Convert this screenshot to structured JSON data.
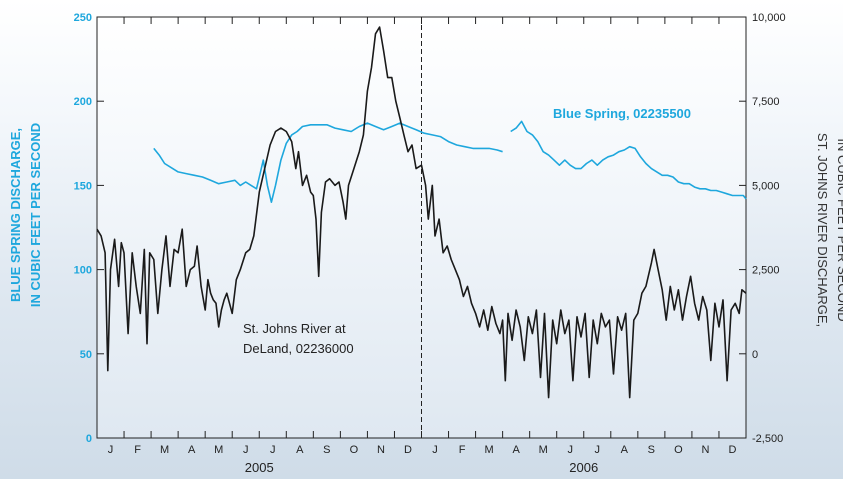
{
  "chart_data": {
    "type": "line",
    "title": "",
    "x_axis": {
      "month_labels": [
        "J",
        "F",
        "M",
        "A",
        "M",
        "J",
        "J",
        "A",
        "S",
        "O",
        "N",
        "D",
        "J",
        "F",
        "M",
        "A",
        "M",
        "J",
        "J",
        "A",
        "S",
        "O",
        "N",
        "D"
      ],
      "year_labels": [
        "2005",
        "2006"
      ],
      "range": [
        "2005-01-01",
        "2006-12-31"
      ]
    },
    "y_left": {
      "label_lines": [
        "BLUE SPRING DISCHARGE,",
        "IN CUBIC FEET PER SECOND"
      ],
      "ticks": [
        0,
        50,
        100,
        150,
        200,
        250
      ],
      "tick_labels": [
        "0",
        "50",
        "100",
        "150",
        "200",
        "250"
      ],
      "range": [
        0,
        250
      ]
    },
    "y_right": {
      "label_lines": [
        "ST. JOHNS RIVER DISCHARGE,",
        "IN CUBIC FEET PER SECOND"
      ],
      "ticks": [
        -2500,
        0,
        2500,
        5000,
        7500,
        10000
      ],
      "tick_labels": [
        "-2,500",
        "0",
        "2,500",
        "5,000",
        "7,500",
        "10,000"
      ],
      "range": [
        -2500,
        10000
      ]
    },
    "year_divider_month": 12,
    "annotations": {
      "blue_spring": "Blue Spring, 02235500",
      "st_johns_line1": "St. Johns River at",
      "st_johns_line2": "DeLand, 02236000"
    },
    "series": [
      {
        "name": "Blue Spring, 02235500",
        "axis": "left",
        "color": "#1ea7dd",
        "segments": [
          [
            [
              2.1,
              172
            ],
            [
              2.3,
              168
            ],
            [
              2.5,
              163
            ],
            [
              2.8,
              160
            ],
            [
              3.0,
              158
            ],
            [
              3.3,
              157
            ],
            [
              3.6,
              156
            ],
            [
              3.9,
              155
            ],
            [
              4.2,
              153
            ],
            [
              4.5,
              151
            ],
            [
              4.8,
              152
            ],
            [
              5.1,
              153
            ],
            [
              5.3,
              150
            ],
            [
              5.5,
              152
            ],
            [
              5.7,
              150
            ],
            [
              5.9,
              148
            ],
            [
              6.0,
              155
            ],
            [
              6.15,
              165
            ],
            [
              6.3,
              150
            ],
            [
              6.45,
              140
            ],
            [
              6.6,
              150
            ],
            [
              6.8,
              165
            ],
            [
              7.0,
              175
            ],
            [
              7.2,
              180
            ],
            [
              7.4,
              182
            ],
            [
              7.6,
              185
            ],
            [
              7.9,
              186
            ],
            [
              8.2,
              186
            ],
            [
              8.5,
              186
            ],
            [
              8.8,
              184
            ],
            [
              9.1,
              183
            ],
            [
              9.4,
              182
            ],
            [
              9.7,
              185
            ],
            [
              10.0,
              187
            ],
            [
              10.3,
              185
            ],
            [
              10.6,
              183
            ],
            [
              10.9,
              185
            ],
            [
              11.2,
              187
            ],
            [
              11.5,
              185
            ],
            [
              11.8,
              183
            ],
            [
              12.1,
              181
            ],
            [
              12.4,
              180
            ],
            [
              12.7,
              179
            ],
            [
              13.0,
              176
            ],
            [
              13.3,
              174
            ],
            [
              13.6,
              173
            ],
            [
              13.9,
              172
            ],
            [
              14.2,
              172
            ],
            [
              14.5,
              172
            ],
            [
              14.8,
              171
            ],
            [
              15.0,
              170
            ]
          ],
          [
            [
              15.3,
              182
            ],
            [
              15.5,
              184
            ],
            [
              15.7,
              188
            ],
            [
              15.9,
              182
            ],
            [
              16.1,
              180
            ],
            [
              16.3,
              176
            ],
            [
              16.5,
              170
            ],
            [
              16.7,
              168
            ],
            [
              16.9,
              165
            ],
            [
              17.1,
              162
            ],
            [
              17.3,
              165
            ],
            [
              17.5,
              162
            ],
            [
              17.7,
              160
            ],
            [
              17.9,
              160
            ],
            [
              18.1,
              163
            ],
            [
              18.3,
              165
            ],
            [
              18.5,
              162
            ],
            [
              18.7,
              165
            ],
            [
              18.9,
              167
            ],
            [
              19.1,
              168
            ],
            [
              19.3,
              170
            ],
            [
              19.5,
              171
            ],
            [
              19.7,
              173
            ],
            [
              19.9,
              172
            ],
            [
              20.1,
              167
            ],
            [
              20.3,
              163
            ],
            [
              20.5,
              160
            ],
            [
              20.7,
              158
            ],
            [
              20.9,
              156
            ],
            [
              21.1,
              156
            ],
            [
              21.3,
              155
            ],
            [
              21.5,
              152
            ],
            [
              21.7,
              151
            ],
            [
              21.9,
              151
            ],
            [
              22.1,
              149
            ],
            [
              22.3,
              148
            ],
            [
              22.5,
              148
            ],
            [
              22.7,
              147
            ],
            [
              22.9,
              147
            ],
            [
              23.1,
              146
            ],
            [
              23.3,
              145
            ],
            [
              23.5,
              144
            ],
            [
              23.7,
              144
            ],
            [
              23.9,
              144
            ],
            [
              24.0,
              142
            ]
          ]
        ]
      },
      {
        "name": "St. Johns River at DeLand, 02236000",
        "axis": "right",
        "color": "#1a1a1a",
        "segments": [
          [
            [
              0.0,
              3700
            ],
            [
              0.15,
              3500
            ],
            [
              0.3,
              3000
            ],
            [
              0.4,
              -500
            ],
            [
              0.5,
              2500
            ],
            [
              0.65,
              3400
            ],
            [
              0.8,
              2000
            ],
            [
              0.9,
              3300
            ],
            [
              1.0,
              3000
            ],
            [
              1.15,
              600
            ],
            [
              1.3,
              3000
            ],
            [
              1.45,
              2000
            ],
            [
              1.6,
              1200
            ],
            [
              1.75,
              3100
            ],
            [
              1.85,
              300
            ],
            [
              1.95,
              3000
            ],
            [
              2.1,
              2800
            ],
            [
              2.25,
              1200
            ],
            [
              2.4,
              2500
            ],
            [
              2.55,
              3500
            ],
            [
              2.7,
              2000
            ],
            [
              2.85,
              3100
            ],
            [
              3.0,
              3000
            ],
            [
              3.15,
              3700
            ],
            [
              3.3,
              2000
            ],
            [
              3.45,
              2500
            ],
            [
              3.6,
              2600
            ],
            [
              3.7,
              3200
            ],
            [
              3.85,
              2000
            ],
            [
              4.0,
              1300
            ],
            [
              4.1,
              2200
            ],
            [
              4.2,
              1800
            ],
            [
              4.3,
              1600
            ],
            [
              4.4,
              1500
            ],
            [
              4.5,
              800
            ],
            [
              4.6,
              1300
            ],
            [
              4.7,
              1600
            ],
            [
              4.8,
              1800
            ],
            [
              4.9,
              1500
            ],
            [
              5.0,
              1200
            ],
            [
              5.15,
              2200
            ],
            [
              5.3,
              2500
            ],
            [
              5.5,
              3000
            ],
            [
              5.65,
              3100
            ],
            [
              5.8,
              3500
            ],
            [
              6.0,
              4800
            ],
            [
              6.2,
              5500
            ],
            [
              6.4,
              6200
            ],
            [
              6.6,
              6600
            ],
            [
              6.8,
              6700
            ],
            [
              7.0,
              6600
            ],
            [
              7.2,
              6300
            ],
            [
              7.35,
              5500
            ],
            [
              7.45,
              6000
            ],
            [
              7.6,
              5000
            ],
            [
              7.75,
              5300
            ],
            [
              7.9,
              4800
            ],
            [
              8.0,
              4700
            ],
            [
              8.1,
              4000
            ],
            [
              8.2,
              2300
            ],
            [
              8.3,
              4200
            ],
            [
              8.45,
              5100
            ],
            [
              8.6,
              5200
            ],
            [
              8.8,
              5000
            ],
            [
              8.95,
              5100
            ],
            [
              9.1,
              4500
            ],
            [
              9.2,
              4000
            ],
            [
              9.3,
              5000
            ],
            [
              9.5,
              5500
            ],
            [
              9.7,
              6000
            ],
            [
              9.85,
              6500
            ],
            [
              10.0,
              7800
            ],
            [
              10.15,
              8500
            ],
            [
              10.3,
              9500
            ],
            [
              10.45,
              9700
            ],
            [
              10.6,
              9000
            ],
            [
              10.75,
              8200
            ],
            [
              10.9,
              8200
            ],
            [
              11.05,
              7500
            ],
            [
              11.2,
              7000
            ],
            [
              11.35,
              6500
            ],
            [
              11.5,
              6000
            ],
            [
              11.65,
              6200
            ],
            [
              11.8,
              5500
            ],
            [
              12.0,
              5600
            ],
            [
              12.15,
              5000
            ],
            [
              12.25,
              4000
            ],
            [
              12.4,
              5000
            ],
            [
              12.5,
              3500
            ],
            [
              12.65,
              4000
            ],
            [
              12.8,
              3000
            ],
            [
              12.95,
              3200
            ],
            [
              13.1,
              2800
            ],
            [
              13.25,
              2500
            ],
            [
              13.4,
              2200
            ],
            [
              13.55,
              1700
            ],
            [
              13.7,
              2000
            ],
            [
              13.85,
              1500
            ],
            [
              14.0,
              1200
            ],
            [
              14.15,
              800
            ],
            [
              14.3,
              1300
            ],
            [
              14.45,
              700
            ],
            [
              14.6,
              1400
            ],
            [
              14.75,
              900
            ],
            [
              14.9,
              600
            ],
            [
              15.0,
              1000
            ],
            [
              15.1,
              -800
            ],
            [
              15.2,
              1200
            ],
            [
              15.35,
              400
            ],
            [
              15.5,
              1300
            ],
            [
              15.65,
              800
            ],
            [
              15.8,
              -200
            ],
            [
              15.95,
              1100
            ],
            [
              16.1,
              600
            ],
            [
              16.25,
              1300
            ],
            [
              16.4,
              -700
            ],
            [
              16.55,
              1200
            ],
            [
              16.7,
              -1300
            ],
            [
              16.85,
              1000
            ],
            [
              17.0,
              300
            ],
            [
              17.15,
              1300
            ],
            [
              17.3,
              600
            ],
            [
              17.45,
              1000
            ],
            [
              17.6,
              -800
            ],
            [
              17.75,
              1100
            ],
            [
              17.9,
              500
            ],
            [
              18.05,
              1200
            ],
            [
              18.2,
              -700
            ],
            [
              18.35,
              1000
            ],
            [
              18.5,
              300
            ],
            [
              18.65,
              1200
            ],
            [
              18.8,
              800
            ],
            [
              18.95,
              1000
            ],
            [
              19.1,
              -600
            ],
            [
              19.25,
              1100
            ],
            [
              19.4,
              700
            ],
            [
              19.55,
              1200
            ],
            [
              19.7,
              -1300
            ],
            [
              19.85,
              1000
            ],
            [
              20.0,
              1200
            ],
            [
              20.15,
              1800
            ],
            [
              20.3,
              2000
            ],
            [
              20.5,
              2700
            ],
            [
              20.6,
              3100
            ],
            [
              20.75,
              2500
            ],
            [
              20.9,
              1900
            ],
            [
              21.05,
              1000
            ],
            [
              21.2,
              2000
            ],
            [
              21.35,
              1300
            ],
            [
              21.5,
              1900
            ],
            [
              21.65,
              1000
            ],
            [
              21.8,
              1700
            ],
            [
              21.95,
              2300
            ],
            [
              22.1,
              1500
            ],
            [
              22.25,
              1000
            ],
            [
              22.4,
              1700
            ],
            [
              22.55,
              1300
            ],
            [
              22.7,
              -200
            ],
            [
              22.85,
              1500
            ],
            [
              23.0,
              800
            ],
            [
              23.15,
              1600
            ],
            [
              23.3,
              -800
            ],
            [
              23.45,
              1300
            ],
            [
              23.6,
              1500
            ],
            [
              23.75,
              1200
            ],
            [
              23.85,
              1900
            ],
            [
              24.0,
              1800
            ]
          ]
        ]
      }
    ]
  }
}
